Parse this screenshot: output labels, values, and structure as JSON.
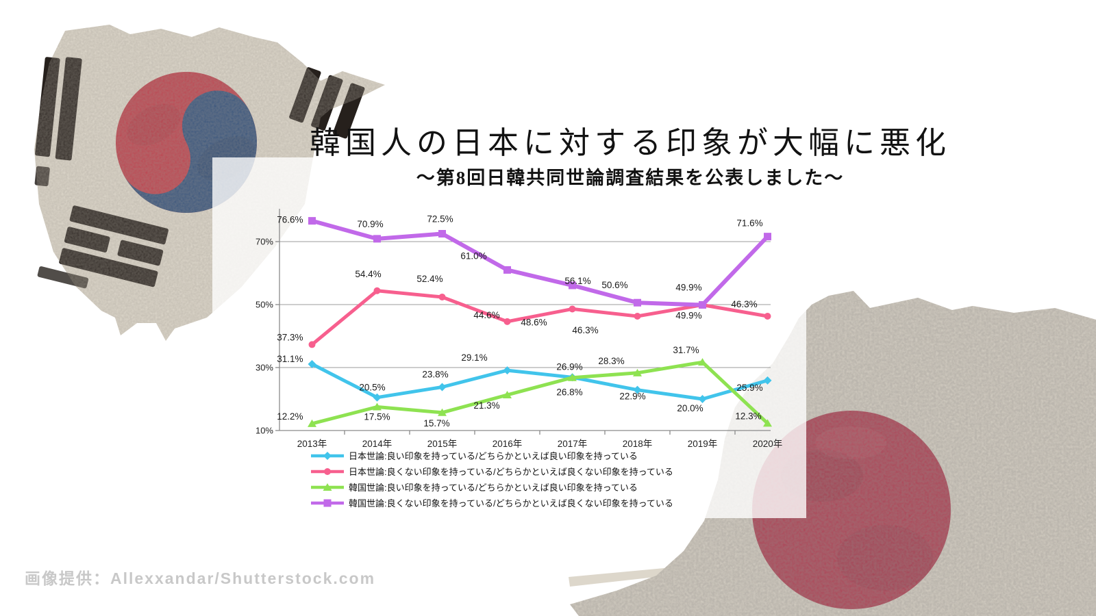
{
  "header": {
    "title": "韓国人の日本に対する印象が大幅に悪化",
    "subtitle": "～第8回日韓共同世論調査結果を公表しました～"
  },
  "footer": {
    "credit": "画像提供：Allexxandar/Shutterstock.com"
  },
  "colors": {
    "japan_good_line": "#41c4eb",
    "japan_bad_line": "#f75f8e",
    "korea_good_line": "#8ee251",
    "korea_bad_line": "#c169e9",
    "grid": "#9b9b9b",
    "axis": "#8a8a8a",
    "label_text": "#1a1a1a",
    "credit_text": "#c8c8c8",
    "flag_beige": "#e6e0d3",
    "taegeuk_red": "#c23b49",
    "taegeuk_blue": "#2e4e7c",
    "trigram_black": "#26201c",
    "hinomaru_red": "#b23a50"
  },
  "chart_data": {
    "type": "line",
    "title": "韓国人の日本に対する印象が大幅に悪化",
    "subtitle": "～第8回日韓共同世論調査結果を公表しました～",
    "x": [
      "2013年",
      "2014年",
      "2015年",
      "2016年",
      "2017年",
      "2018年",
      "2019年",
      "2020年"
    ],
    "ylim": [
      10,
      80
    ],
    "grid": true,
    "legend_position": "bottom-left",
    "yticks": [
      {
        "value": 70,
        "label": "70%"
      },
      {
        "value": 50,
        "label": "50%"
      },
      {
        "value": 30,
        "label": "30%"
      },
      {
        "value": 10,
        "label": "10%"
      }
    ],
    "series": [
      {
        "name": "日本世論:良い印象を持っている/どちらかといえば良い印象を持っている",
        "color": "#41c4eb",
        "marker": "diamond",
        "values": [
          31.1,
          20.5,
          23.8,
          29.1,
          26.9,
          22.9,
          20.0,
          25.9
        ],
        "labels": [
          "31.1%",
          "20.5%",
          "23.8%",
          "29.1%",
          "26.9%",
          "22.9%",
          "20.0%",
          "25.9%"
        ],
        "label_offsets": [
          [
            -13,
            -3,
            "e"
          ],
          [
            -7,
            -10,
            "m"
          ],
          [
            -10,
            -14,
            "m"
          ],
          [
            -48,
            -14,
            "m"
          ],
          [
            -4,
            -11,
            "m"
          ],
          [
            -7,
            14,
            "m"
          ],
          [
            -18,
            18,
            "m"
          ],
          [
            -26,
            15,
            "m"
          ]
        ]
      },
      {
        "name": "日本世論:良くない印象を持っている/どちらかといえば良くない印象を持っている",
        "color": "#f75f8e",
        "marker": "circle",
        "values": [
          37.3,
          54.4,
          52.4,
          44.6,
          48.6,
          46.3,
          49.9,
          46.3
        ],
        "labels": [
          "37.3%",
          "54.4%",
          "52.4%",
          "44.6%",
          "48.6%",
          "46.3%",
          "49.9%",
          "46.3%"
        ],
        "label_offsets": [
          [
            -13,
            -6,
            "e"
          ],
          [
            -13,
            -20,
            "m"
          ],
          [
            -18,
            -22,
            "m"
          ],
          [
            -30,
            -5,
            "m"
          ],
          [
            -56,
            24,
            "m"
          ],
          [
            -76,
            25,
            "m"
          ],
          [
            -20,
            20,
            "m"
          ],
          [
            -34,
            -13,
            "m"
          ]
        ]
      },
      {
        "name": "韓国世論:良い印象を持っている/どちらかといえば良い印象を持っている",
        "color": "#8ee251",
        "marker": "triangle",
        "values": [
          12.2,
          17.5,
          15.7,
          21.3,
          26.8,
          28.3,
          31.7,
          12.3
        ],
        "labels": [
          "12.2%",
          "17.5%",
          "15.7%",
          "21.3%",
          "26.8%",
          "28.3%",
          "31.7%",
          "12.3%"
        ],
        "label_offsets": [
          [
            -13,
            -6,
            "e"
          ],
          [
            0,
            19,
            "m"
          ],
          [
            -8,
            20,
            "m"
          ],
          [
            -30,
            20,
            "m"
          ],
          [
            -4,
            26,
            "m"
          ],
          [
            -38,
            -13,
            "m"
          ],
          [
            -24,
            -13,
            "m"
          ],
          [
            -28,
            -6,
            "m"
          ]
        ]
      },
      {
        "name": "韓国世論:良くない印象を持っている/どちらかといえば良くない印象を持っている",
        "color": "#c169e9",
        "marker": "square",
        "values": [
          76.6,
          70.9,
          72.5,
          61.0,
          56.1,
          50.6,
          49.9,
          71.6
        ],
        "labels": [
          "76.6%",
          "70.9%",
          "72.5%",
          "61.0%",
          "56.1%",
          "50.6%",
          "49.9%",
          "71.6%"
        ],
        "label_offsets": [
          [
            -13,
            3,
            "e"
          ],
          [
            -10,
            -17,
            "m"
          ],
          [
            -3,
            -17,
            "m"
          ],
          [
            -49,
            -16,
            "m"
          ],
          [
            8,
            -2,
            "m"
          ],
          [
            -33,
            -21,
            "m"
          ],
          [
            -20,
            -21,
            "m"
          ],
          [
            -26,
            -15,
            "m"
          ]
        ]
      }
    ]
  }
}
